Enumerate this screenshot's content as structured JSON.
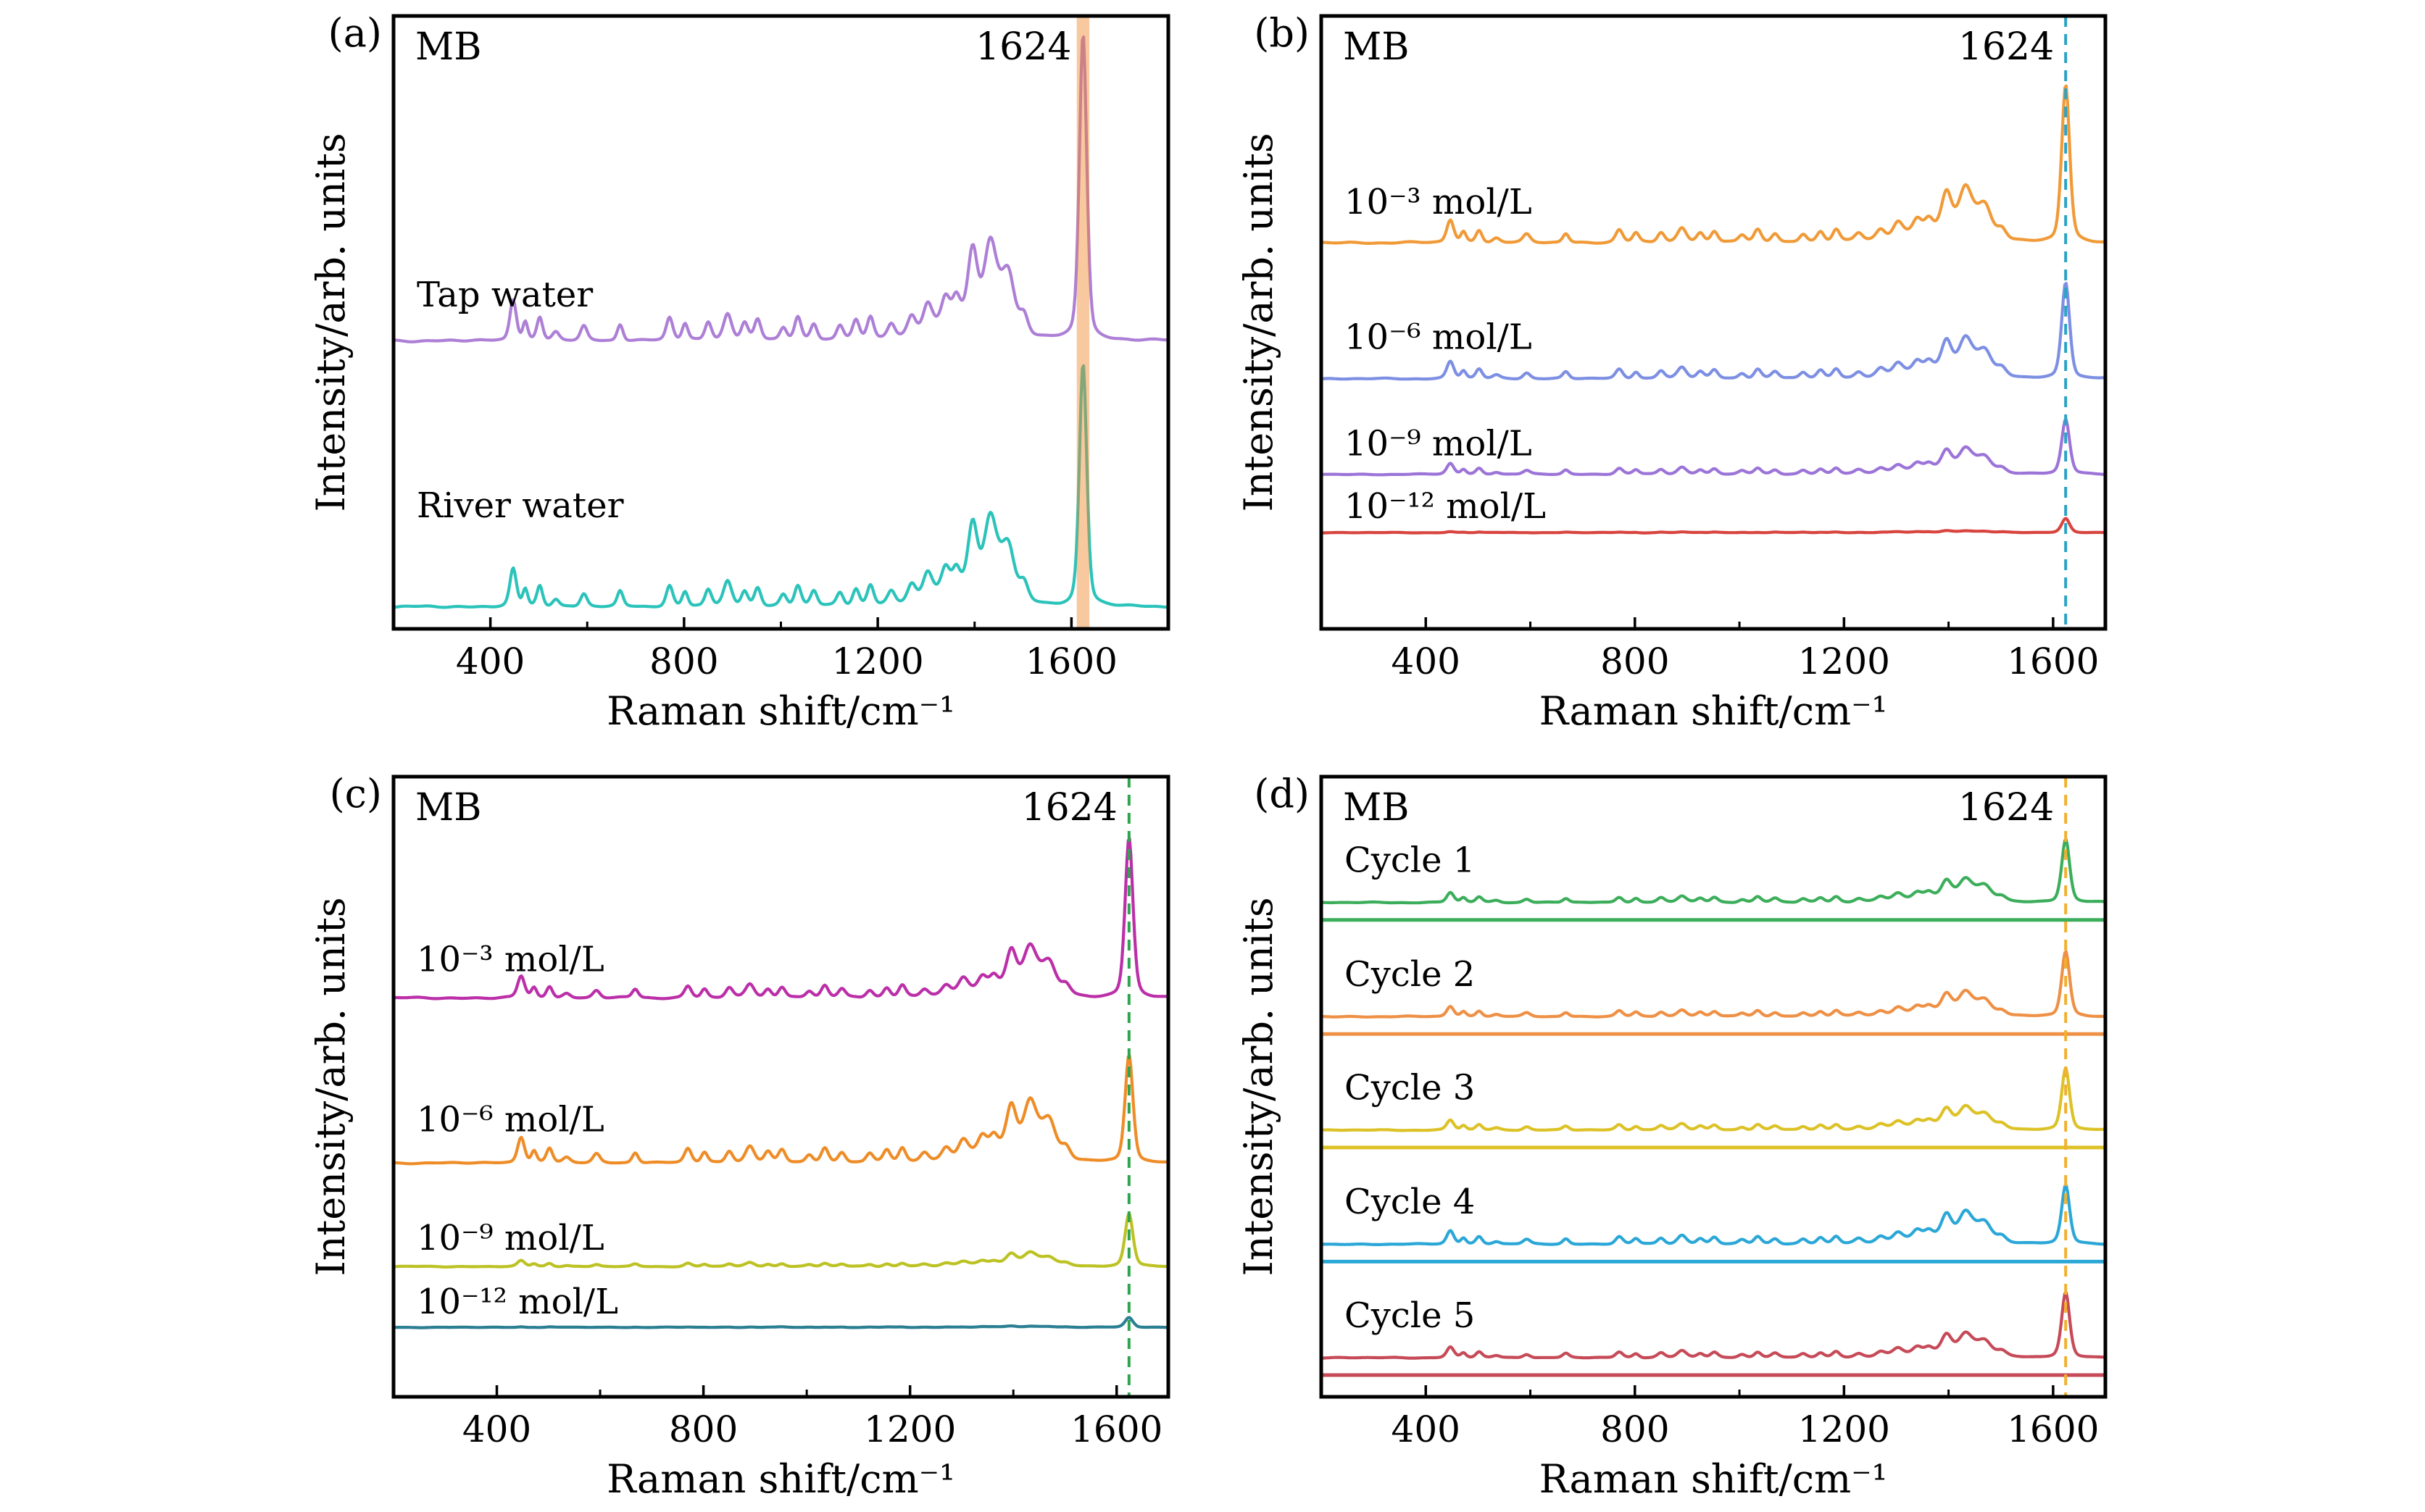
{
  "chart_data": {
    "type": "line",
    "description": "SERS Raman spectra of methylene blue (MB): (a) real water samples, (b) and (c) concentration series, (d) recycling cycles",
    "xlabel": "Raman shift/cm⁻¹",
    "ylabel": "Intensity/arb. units",
    "molecule_label": "MB",
    "main_peak": {
      "label": "1624",
      "position": 1624
    },
    "x_major_ticks": [
      400,
      800,
      1200,
      1600
    ],
    "x_minor_ticks": [
      600,
      1000,
      1400
    ],
    "grid": false,
    "legend_position": "inline-labels",
    "mb_reference_peaks": [
      [
        447,
        0.1,
        8
      ],
      [
        472,
        0.045,
        6
      ],
      [
        502,
        0.055,
        7
      ],
      [
        535,
        0.02,
        8
      ],
      [
        593,
        0.035,
        8
      ],
      [
        668,
        0.04,
        7
      ],
      [
        770,
        0.055,
        8
      ],
      [
        802,
        0.04,
        7
      ],
      [
        850,
        0.045,
        8
      ],
      [
        890,
        0.065,
        10
      ],
      [
        925,
        0.04,
        8
      ],
      [
        952,
        0.05,
        8
      ],
      [
        1005,
        0.03,
        8
      ],
      [
        1035,
        0.055,
        8
      ],
      [
        1068,
        0.04,
        8
      ],
      [
        1122,
        0.035,
        8
      ],
      [
        1155,
        0.045,
        8
      ],
      [
        1185,
        0.055,
        8
      ],
      [
        1228,
        0.035,
        9
      ],
      [
        1270,
        0.045,
        10
      ],
      [
        1303,
        0.065,
        11
      ],
      [
        1340,
        0.06,
        10
      ],
      [
        1362,
        0.05,
        9
      ],
      [
        1375,
        0.05,
        70
      ],
      [
        1396,
        0.16,
        11
      ],
      [
        1432,
        0.13,
        13
      ],
      [
        1445,
        0.09,
        30
      ],
      [
        1470,
        0.1,
        14
      ],
      [
        1502,
        0.045,
        10
      ],
      [
        1624,
        1.0,
        9
      ]
    ],
    "panels": [
      {
        "id": "a",
        "tag": "(a)",
        "x_range": [
          200,
          1800
        ],
        "marker": {
          "style": "band",
          "center": 1624,
          "width_cm": 26,
          "color": "rgba(240,132,40,0.45)"
        },
        "series": [
          {
            "name": "Tap water",
            "color": "#ad7fd6",
            "baseline": 0.47,
            "peak_amp": 0.5,
            "body": 1.35,
            "label_dy": 0.075
          },
          {
            "name": "River water",
            "color": "#2bc3ba",
            "baseline": 0.036,
            "peak_amp": 0.395,
            "body": 1.55,
            "label_dy": 0.165
          }
        ]
      },
      {
        "id": "b",
        "tag": "(b)",
        "x_range": [
          200,
          1700
        ],
        "marker": {
          "style": "dashed",
          "center": 1624,
          "color": "#2aa3c6"
        },
        "series": [
          {
            "name": "10⁻³ mol/L",
            "color": "#f09a38",
            "baseline": 0.63,
            "peak_amp": 0.257,
            "body": 1.45,
            "label_dy": 0.066
          },
          {
            "name": "10⁻⁶ mol/L",
            "color": "#7d8fe3",
            "baseline": 0.408,
            "peak_amp": 0.157,
            "body": 1.8,
            "label_dy": 0.068
          },
          {
            "name": "10⁻⁹ mol/L",
            "color": "#9c74d8",
            "baseline": 0.252,
            "peak_amp": 0.089,
            "body": 2.0,
            "label_dy": 0.05
          },
          {
            "name": "10⁻¹² mol/L",
            "color": "#d8453f",
            "baseline": 0.157,
            "peak_amp": 0.023,
            "body": 0.6,
            "label_dy": 0.043
          }
        ]
      },
      {
        "id": "c",
        "tag": "(c)",
        "x_range": [
          200,
          1700
        ],
        "marker": {
          "style": "dashed",
          "center": 1624,
          "color": "#2ea44e"
        },
        "series": [
          {
            "name": "10⁻³ mol/L",
            "color": "#bb2fa8",
            "baseline": 0.643,
            "peak_amp": 0.258,
            "body": 1.35,
            "label_dy": 0.062
          },
          {
            "name": "10⁻⁶ mol/L",
            "color": "#ee8d28",
            "baseline": 0.377,
            "peak_amp": 0.175,
            "body": 2.4,
            "label_dy": 0.07
          },
          {
            "name": "10⁻⁹ mol/L",
            "color": "#bdc224",
            "baseline": 0.21,
            "peak_amp": 0.085,
            "body": 1.1,
            "label_dy": 0.046
          },
          {
            "name": "10⁻¹² mol/L",
            "color": "#2b7f93",
            "baseline": 0.112,
            "peak_amp": 0.016,
            "body": 0.55,
            "label_dy": 0.041
          }
        ]
      },
      {
        "id": "d",
        "tag": "(d)",
        "x_range": [
          200,
          1700
        ],
        "marker": {
          "style": "dashed",
          "center": 1624,
          "color": "#f2b02e"
        },
        "series": [
          {
            "name": "Cycle 1",
            "color": "#3cae5b",
            "baseline": 0.797,
            "peak_amp": 0.102,
            "body": 1.6,
            "label_dy": 0.068,
            "separator": 0.769
          },
          {
            "name": "Cycle 2",
            "color": "#ee9045",
            "baseline": 0.613,
            "peak_amp": 0.105,
            "body": 1.6,
            "label_dy": 0.068,
            "separator": 0.585
          },
          {
            "name": "Cycle 3",
            "color": "#dcc227",
            "baseline": 0.43,
            "peak_amp": 0.1,
            "body": 1.6,
            "label_dy": 0.068,
            "separator": 0.402
          },
          {
            "name": "Cycle 4",
            "color": "#2ba7d7",
            "baseline": 0.246,
            "peak_amp": 0.095,
            "body": 2.3,
            "label_dy": 0.068,
            "separator": 0.218
          },
          {
            "name": "Cycle 5",
            "color": "#c64a58",
            "baseline": 0.063,
            "peak_amp": 0.105,
            "body": 1.6,
            "label_dy": 0.068,
            "separator": 0.035
          }
        ]
      }
    ],
    "style": {
      "axis_color": "#000000",
      "box_stroke_width": 5,
      "trace_stroke_width": 4.2,
      "separator_stroke_width": 5,
      "dash_pattern": "15 10",
      "tick_major_len": 16,
      "tick_minor_len": 10
    }
  }
}
